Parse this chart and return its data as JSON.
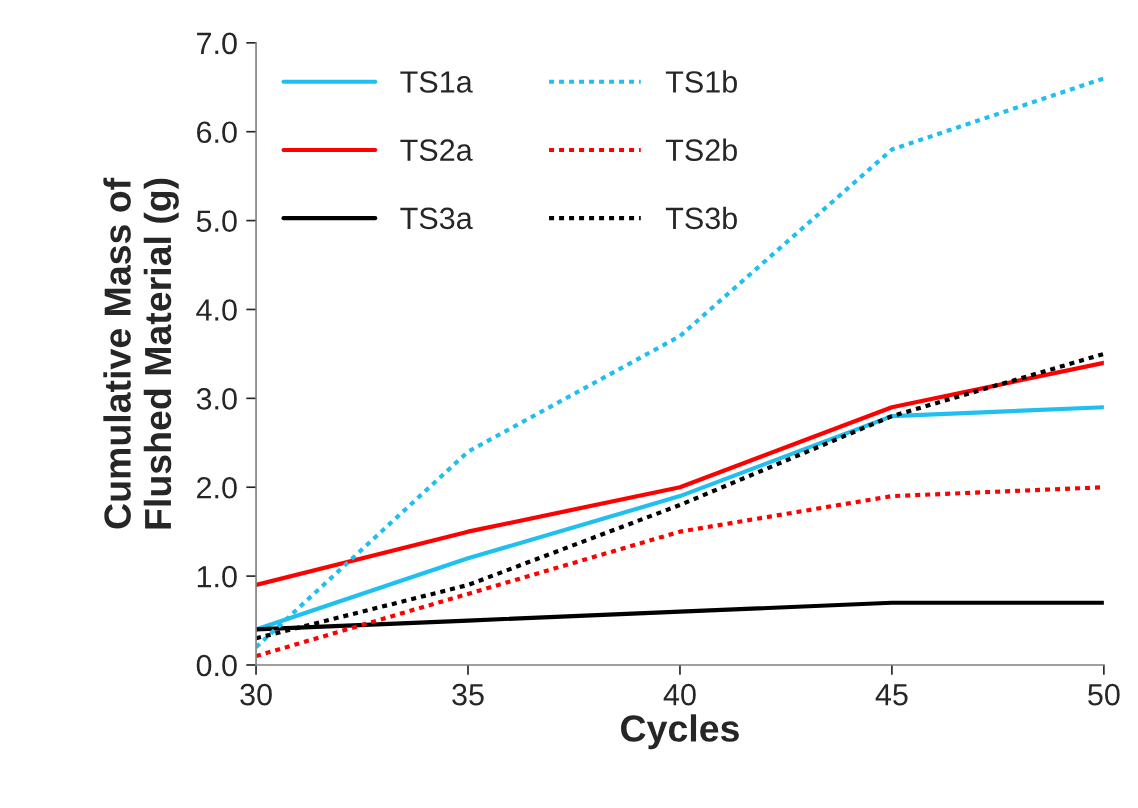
{
  "chart_data": {
    "type": "line",
    "xlabel": "Cycles",
    "ylabel": "Cumulative Mass of\nFlushed Material (g)",
    "x": [
      30,
      35,
      40,
      45,
      50
    ],
    "series": [
      {
        "name": "TS1a",
        "color": "#1fbff0",
        "line_style": "solid",
        "values": [
          0.4,
          1.2,
          1.9,
          2.8,
          2.9
        ]
      },
      {
        "name": "TS2a",
        "color": "#ff0000",
        "line_style": "solid",
        "values": [
          0.9,
          1.5,
          2.0,
          2.9,
          3.4
        ]
      },
      {
        "name": "TS3a",
        "color": "#000000",
        "line_style": "solid",
        "values": [
          0.4,
          0.5,
          0.6,
          0.7,
          0.7
        ]
      },
      {
        "name": "TS1b",
        "color": "#1fbff0",
        "line_style": "dotted",
        "values": [
          0.2,
          2.4,
          3.7,
          5.8,
          6.6
        ]
      },
      {
        "name": "TS2b",
        "color": "#ff0000",
        "line_style": "dotted",
        "values": [
          0.1,
          0.8,
          1.5,
          1.9,
          2.0
        ]
      },
      {
        "name": "TS3b",
        "color": "#000000",
        "line_style": "dotted",
        "values": [
          0.3,
          0.9,
          1.8,
          2.8,
          3.5
        ]
      }
    ],
    "xlim": [
      30,
      50
    ],
    "xticks": [
      30,
      35,
      40,
      45,
      50
    ],
    "ylim": [
      0,
      7
    ],
    "yticks": [
      {
        "value": 0,
        "label": "0.0"
      },
      {
        "value": 1,
        "label": "1.0"
      },
      {
        "value": 2,
        "label": "2.0"
      },
      {
        "value": 3,
        "label": "3.0"
      },
      {
        "value": 4,
        "label": "4.0"
      },
      {
        "value": 5,
        "label": "5.0"
      },
      {
        "value": 6,
        "label": "6.0"
      },
      {
        "value": 7,
        "label": "7.0"
      }
    ],
    "grid": false,
    "legend": "top left",
    "marker": "none"
  }
}
